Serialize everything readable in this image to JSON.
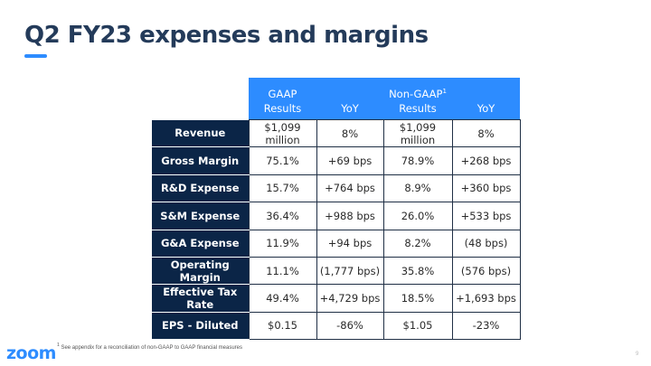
{
  "slide": {
    "title": "Q2 FY23 expenses and margins",
    "footnote_marker": "1",
    "footnote": "See appendix for a reconciliation of non-GAAP to GAAP financial measures",
    "logo": "zoom",
    "page_number": "9"
  },
  "table": {
    "headers": [
      {
        "line1": "GAAP",
        "line2": "Results",
        "sup": ""
      },
      {
        "line1": "",
        "line2": "YoY",
        "sup": ""
      },
      {
        "line1": "Non-GAAP",
        "line2": "Results",
        "sup": "1"
      },
      {
        "line1": "",
        "line2": "YoY",
        "sup": ""
      }
    ],
    "rows": [
      {
        "label": "Revenue",
        "gaap": "$1,099 million",
        "gaap_yoy": "8%",
        "nongaap": "$1,099 million",
        "nongaap_yoy": "8%"
      },
      {
        "label": "Gross Margin",
        "gaap": "75.1%",
        "gaap_yoy": "+69 bps",
        "nongaap": "78.9%",
        "nongaap_yoy": "+268 bps"
      },
      {
        "label": "R&D Expense",
        "gaap": "15.7%",
        "gaap_yoy": "+764 bps",
        "nongaap": "8.9%",
        "nongaap_yoy": "+360 bps"
      },
      {
        "label": "S&M Expense",
        "gaap": "36.4%",
        "gaap_yoy": "+988 bps",
        "nongaap": "26.0%",
        "nongaap_yoy": "+533 bps"
      },
      {
        "label": "G&A Expense",
        "gaap": "11.9%",
        "gaap_yoy": "+94 bps",
        "nongaap": "8.2%",
        "nongaap_yoy": "(48 bps)"
      },
      {
        "label": "Operating Margin",
        "gaap": "11.1%",
        "gaap_yoy": "(1,777 bps)",
        "nongaap": "35.8%",
        "nongaap_yoy": "(576 bps)"
      },
      {
        "label": "Effective Tax Rate",
        "gaap": "49.4%",
        "gaap_yoy": "+4,729 bps",
        "nongaap": "18.5%",
        "nongaap_yoy": "+1,693 bps"
      },
      {
        "label": "EPS - Diluted",
        "gaap": "$0.15",
        "gaap_yoy": "-86%",
        "nongaap": "$1.05",
        "nongaap_yoy": "-23%"
      }
    ]
  },
  "colors": {
    "accent": "#2d8cff",
    "row_label_bg": "#0b2547",
    "title": "#243b5a"
  }
}
